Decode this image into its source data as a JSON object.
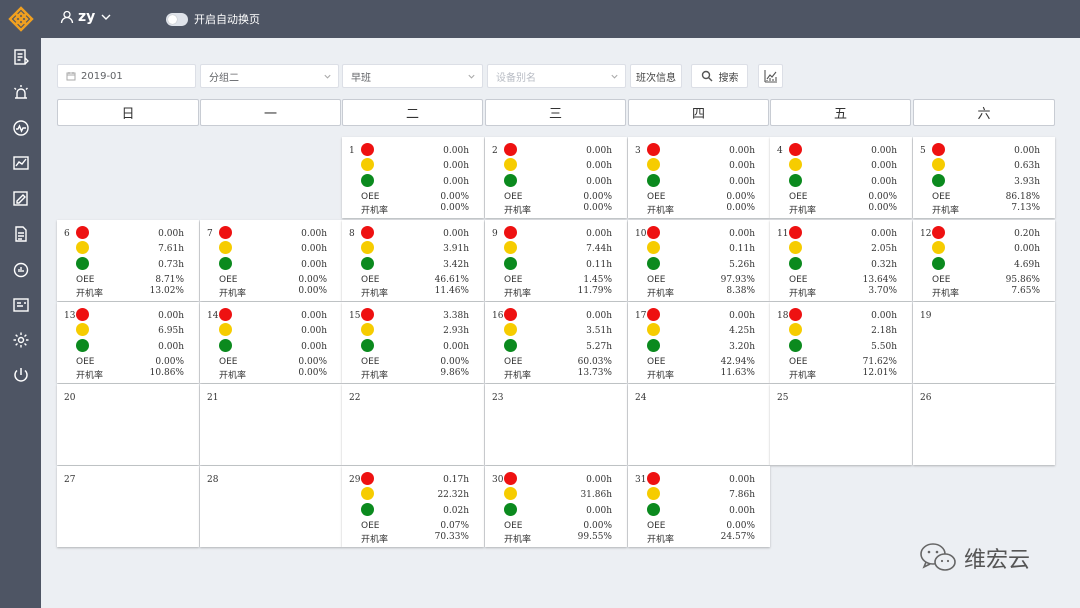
{
  "header": {
    "user": "zy",
    "toggle_label": "开启自动换页"
  },
  "filters": {
    "month": "2019-01",
    "group": "分组二",
    "shift": "早班",
    "device_placeholder": "设备别名",
    "shift_info_label": "班次信息",
    "search_label": "搜索"
  },
  "weekdays": [
    "日",
    "一",
    "二",
    "三",
    "四",
    "五",
    "六"
  ],
  "labels": {
    "oee": "OEE",
    "run_rate": "开机率"
  },
  "days": [
    {
      "n": "1",
      "d": [
        "0.00h",
        "0.00h",
        "0.00h",
        "0.00%",
        "0.00%"
      ]
    },
    {
      "n": "2",
      "d": [
        "0.00h",
        "0.00h",
        "0.00h",
        "0.00%",
        "0.00%"
      ]
    },
    {
      "n": "3",
      "d": [
        "0.00h",
        "0.00h",
        "0.00h",
        "0.00%",
        "0.00%"
      ]
    },
    {
      "n": "4",
      "d": [
        "0.00h",
        "0.00h",
        "0.00h",
        "0.00%",
        "0.00%"
      ]
    },
    {
      "n": "5",
      "d": [
        "0.00h",
        "0.63h",
        "3.93h",
        "86.18%",
        "7.13%"
      ]
    },
    {
      "n": "6",
      "d": [
        "0.00h",
        "7.61h",
        "0.73h",
        "8.71%",
        "13.02%"
      ]
    },
    {
      "n": "7",
      "d": [
        "0.00h",
        "0.00h",
        "0.00h",
        "0.00%",
        "0.00%"
      ]
    },
    {
      "n": "8",
      "d": [
        "0.00h",
        "3.91h",
        "3.42h",
        "46.61%",
        "11.46%"
      ]
    },
    {
      "n": "9",
      "d": [
        "0.00h",
        "7.44h",
        "0.11h",
        "1.45%",
        "11.79%"
      ]
    },
    {
      "n": "10",
      "d": [
        "0.00h",
        "0.11h",
        "5.26h",
        "97.93%",
        "8.38%"
      ]
    },
    {
      "n": "11",
      "d": [
        "0.00h",
        "2.05h",
        "0.32h",
        "13.64%",
        "3.70%"
      ]
    },
    {
      "n": "12",
      "d": [
        "0.20h",
        "0.00h",
        "4.69h",
        "95.86%",
        "7.65%"
      ]
    },
    {
      "n": "13",
      "d": [
        "0.00h",
        "6.95h",
        "0.00h",
        "0.00%",
        "10.86%"
      ]
    },
    {
      "n": "14",
      "d": [
        "0.00h",
        "0.00h",
        "0.00h",
        "0.00%",
        "0.00%"
      ]
    },
    {
      "n": "15",
      "d": [
        "3.38h",
        "2.93h",
        "0.00h",
        "0.00%",
        "9.86%"
      ]
    },
    {
      "n": "16",
      "d": [
        "0.00h",
        "3.51h",
        "5.27h",
        "60.03%",
        "13.73%"
      ]
    },
    {
      "n": "17",
      "d": [
        "0.00h",
        "4.25h",
        "3.20h",
        "42.94%",
        "11.63%"
      ]
    },
    {
      "n": "18",
      "d": [
        "0.00h",
        "2.18h",
        "5.50h",
        "71.62%",
        "12.01%"
      ]
    },
    {
      "n": "19"
    },
    {
      "n": "20"
    },
    {
      "n": "21"
    },
    {
      "n": "22"
    },
    {
      "n": "23"
    },
    {
      "n": "24"
    },
    {
      "n": "25"
    },
    {
      "n": "26"
    },
    {
      "n": "27"
    },
    {
      "n": "28"
    },
    {
      "n": "29",
      "d": [
        "0.17h",
        "22.32h",
        "0.02h",
        "0.07%",
        "70.33%"
      ]
    },
    {
      "n": "30",
      "d": [
        "0.00h",
        "31.86h",
        "0.00h",
        "0.00%",
        "99.55%"
      ]
    },
    {
      "n": "31",
      "d": [
        "0.00h",
        "7.86h",
        "0.00h",
        "0.00%",
        "24.57%"
      ]
    }
  ],
  "colors": {
    "idle": "#ee1111",
    "standby": "#f6cc00",
    "running": "#0b8a1e"
  },
  "watermark": "维宏云"
}
